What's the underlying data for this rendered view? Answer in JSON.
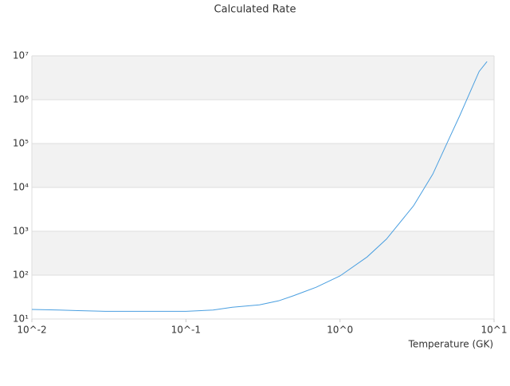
{
  "chart_data": {
    "type": "line",
    "title": "Calculated Rate",
    "x_label": "Temperature (GK)",
    "x": [
      0.01,
      0.015,
      0.02,
      0.03,
      0.05,
      0.1,
      0.15,
      0.2,
      0.3,
      0.4,
      0.5,
      0.7,
      1.0,
      1.5,
      2.0,
      3.0,
      4.0,
      5.0,
      6.0,
      8.0,
      9.0
    ],
    "series": [
      {
        "name": "Calculated Rate",
        "color": "#4a9fe0",
        "values": [
          16.5,
          16,
          15.5,
          15,
          15,
          15,
          16,
          18.5,
          21,
          26,
          34,
          53,
          96,
          260,
          660,
          3800,
          20000,
          110000,
          440000,
          4400000,
          7400000
        ]
      }
    ],
    "xlim": [
      0.01,
      10
    ],
    "ylim": [
      10,
      10000000
    ],
    "xlog": true,
    "ylog": true,
    "xticks": [
      {
        "value": 0.01,
        "label": "10^-2"
      },
      {
        "value": 0.1,
        "label": "10^-1"
      },
      {
        "value": 1,
        "label": "10^0"
      },
      {
        "value": 10,
        "label": "10^1"
      }
    ],
    "yticks": [
      {
        "value": 10,
        "label": "10¹"
      },
      {
        "value": 100,
        "label": "10²"
      },
      {
        "value": 1000,
        "label": "10³"
      },
      {
        "value": 10000,
        "label": "10⁴"
      },
      {
        "value": 100000,
        "label": "10⁵"
      },
      {
        "value": 1000000,
        "label": "10⁶"
      },
      {
        "value": 10000000,
        "label": "10⁷"
      }
    ],
    "grid": true,
    "band_color": "#f2f2f2"
  }
}
